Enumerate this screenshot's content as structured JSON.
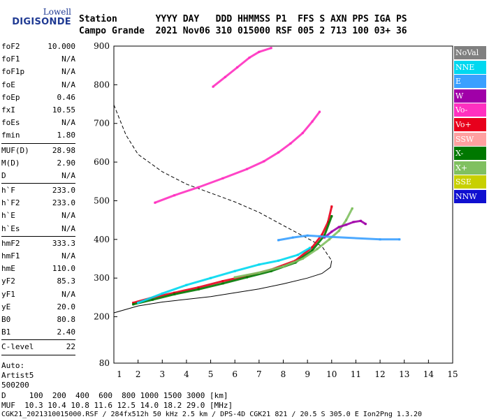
{
  "logo": {
    "line1": "Lowell",
    "line2": "DIGISONDE"
  },
  "header": {
    "row1": "Station       YYYY DAY   DDD HHMMSS P1  FFS S AXN PPS IGA PS",
    "row2": "Campo Grande  2021 Nov06 310 015000 RSF 005 2 713 100 03+ 36"
  },
  "params": {
    "group1": [
      [
        "foF2",
        "10.000"
      ],
      [
        "foF1",
        "N/A"
      ],
      [
        "foF1p",
        "N/A"
      ],
      [
        "foE",
        "N/A"
      ],
      [
        "foEp",
        "0.46"
      ],
      [
        "fxI",
        "10.55"
      ],
      [
        "foEs",
        "N/A"
      ],
      [
        "fmin",
        "1.80"
      ]
    ],
    "group2": [
      [
        "MUF(D)",
        "28.98"
      ],
      [
        "M(D)",
        "2.90"
      ],
      [
        "D",
        "N/A"
      ]
    ],
    "group3": [
      [
        "h`F",
        "233.0"
      ],
      [
        "h`F2",
        "233.0"
      ],
      [
        "h`E",
        "N/A"
      ],
      [
        "h`Es",
        "N/A"
      ]
    ],
    "group4": [
      [
        "hmF2",
        "333.3"
      ],
      [
        "hmF1",
        "N/A"
      ],
      [
        "hmE",
        "110.0"
      ],
      [
        "yF2",
        "85.3"
      ],
      [
        "yF1",
        "N/A"
      ],
      [
        "yE",
        "20.0"
      ],
      [
        "B0",
        "80.8"
      ],
      [
        "B1",
        "2.40"
      ]
    ],
    "group5": [
      [
        "C-level",
        "22"
      ]
    ],
    "auto_lines": [
      "Auto:",
      "Artist5",
      "500200"
    ]
  },
  "legend": [
    {
      "label": "NoVal",
      "color": "#808080"
    },
    {
      "label": "NNE",
      "color": "#00d8f0"
    },
    {
      "label": "E",
      "color": "#3aa0ff"
    },
    {
      "label": "W",
      "color": "#a000a8"
    },
    {
      "label": "Vo-",
      "color": "#ff30c0"
    },
    {
      "label": "Vo+",
      "color": "#e8001c"
    },
    {
      "label": "SSW",
      "color": "#ffa0a0"
    },
    {
      "label": "X-",
      "color": "#007800"
    },
    {
      "label": "X+",
      "color": "#80c060"
    },
    {
      "label": "SSE",
      "color": "#c8d000"
    },
    {
      "label": "NNW",
      "color": "#1010d0"
    }
  ],
  "bottom": {
    "line1": "D     100  200  400  600  800 1000 1500 3000 [km]",
    "line2": "MUF  10.3 10.4 10.8 11.6 12.5 14.0 18.2 29.0 [MHz]",
    "line3": "CGK21_2021310015000.RSF / 284fx512h 50 kHz 2.5 km / DPS-4D CGK21 821 / 20.5 S 305.0 E Ion2Png 1.3.20"
  },
  "chart_data": {
    "type": "scatter",
    "xlim": [
      1,
      15
    ],
    "ylim": [
      80,
      900
    ],
    "x_ticks": [
      1,
      2,
      3,
      4,
      5,
      6,
      7,
      8,
      9,
      10,
      11,
      12,
      13,
      14,
      15
    ],
    "y_ticks": [
      80,
      200,
      300,
      400,
      500,
      600,
      700,
      800,
      900
    ],
    "series": [
      {
        "color": "#e8001c",
        "points": [
          [
            1.8,
            236
          ],
          [
            2.5,
            248
          ],
          [
            3.5,
            262
          ],
          [
            4.5,
            276
          ],
          [
            5.5,
            292
          ],
          [
            6.5,
            306
          ],
          [
            7.5,
            322
          ],
          [
            8.5,
            345
          ],
          [
            9.2,
            380
          ],
          [
            9.6,
            412
          ],
          [
            9.85,
            445
          ],
          [
            10.0,
            485
          ]
        ]
      },
      {
        "color": "#007800",
        "points": [
          [
            1.8,
            232
          ],
          [
            2.6,
            244
          ],
          [
            3.5,
            258
          ],
          [
            4.5,
            271
          ],
          [
            5.5,
            286
          ],
          [
            6.5,
            302
          ],
          [
            7.5,
            318
          ],
          [
            8.5,
            340
          ],
          [
            9.2,
            372
          ],
          [
            9.7,
            410
          ],
          [
            10.0,
            460
          ]
        ]
      },
      {
        "color": "#80c060",
        "points": [
          [
            6.0,
            302
          ],
          [
            7.0,
            314
          ],
          [
            8.0,
            330
          ],
          [
            8.8,
            350
          ],
          [
            9.4,
            375
          ],
          [
            9.9,
            400
          ],
          [
            10.3,
            422
          ],
          [
            10.6,
            450
          ],
          [
            10.85,
            480
          ]
        ]
      },
      {
        "color": "#a000a8",
        "points": [
          [
            9.7,
            405
          ],
          [
            10.0,
            420
          ],
          [
            10.3,
            432
          ],
          [
            10.6,
            438
          ],
          [
            10.9,
            445
          ],
          [
            11.2,
            448
          ],
          [
            11.4,
            440
          ]
        ]
      },
      {
        "color": "#00d8f0",
        "points": [
          [
            2.0,
            236
          ],
          [
            3.0,
            260
          ],
          [
            4.0,
            282
          ],
          [
            5.0,
            300
          ],
          [
            6.0,
            318
          ],
          [
            7.0,
            335
          ],
          [
            7.8,
            345
          ],
          [
            8.6,
            360
          ],
          [
            9.1,
            378
          ]
        ]
      },
      {
        "color": "#ff30c0",
        "points": [
          [
            2.7,
            495
          ],
          [
            3.5,
            514
          ],
          [
            4.5,
            535
          ],
          [
            5.5,
            558
          ],
          [
            6.5,
            582
          ],
          [
            7.2,
            602
          ],
          [
            7.8,
            625
          ],
          [
            8.3,
            648
          ],
          [
            8.8,
            675
          ],
          [
            9.2,
            705
          ],
          [
            9.5,
            730
          ]
        ]
      },
      {
        "color": "#3aa0ff",
        "points": [
          [
            7.8,
            398
          ],
          [
            8.4,
            405
          ],
          [
            9.0,
            410
          ],
          [
            9.5,
            408
          ],
          [
            12.0,
            400
          ],
          [
            12.8,
            400
          ]
        ]
      },
      {
        "color": "#ff30c0",
        "points": [
          [
            5.1,
            795
          ],
          [
            5.6,
            820
          ],
          [
            6.1,
            845
          ],
          [
            6.6,
            870
          ],
          [
            7.0,
            885
          ],
          [
            7.5,
            895
          ]
        ]
      }
    ],
    "curves": [
      {
        "name": "virtual-height-model",
        "style": "solid",
        "points": [
          [
            1.0,
            210
          ],
          [
            2.0,
            228
          ],
          [
            3.0,
            238
          ],
          [
            4.0,
            245
          ],
          [
            5.0,
            252
          ],
          [
            6.0,
            262
          ],
          [
            7.0,
            272
          ],
          [
            8.0,
            285
          ],
          [
            9.0,
            300
          ],
          [
            9.6,
            312
          ],
          [
            9.95,
            328
          ],
          [
            10.0,
            345
          ]
        ]
      },
      {
        "name": "profile",
        "style": "dashed",
        "points": [
          [
            1.0,
            748
          ],
          [
            1.5,
            670
          ],
          [
            2.0,
            620
          ],
          [
            3.0,
            575
          ],
          [
            4.0,
            543
          ],
          [
            5.0,
            520
          ],
          [
            6.0,
            497
          ],
          [
            7.0,
            470
          ],
          [
            8.0,
            436
          ],
          [
            9.0,
            403
          ],
          [
            9.6,
            382
          ],
          [
            10.0,
            345
          ]
        ]
      }
    ]
  }
}
